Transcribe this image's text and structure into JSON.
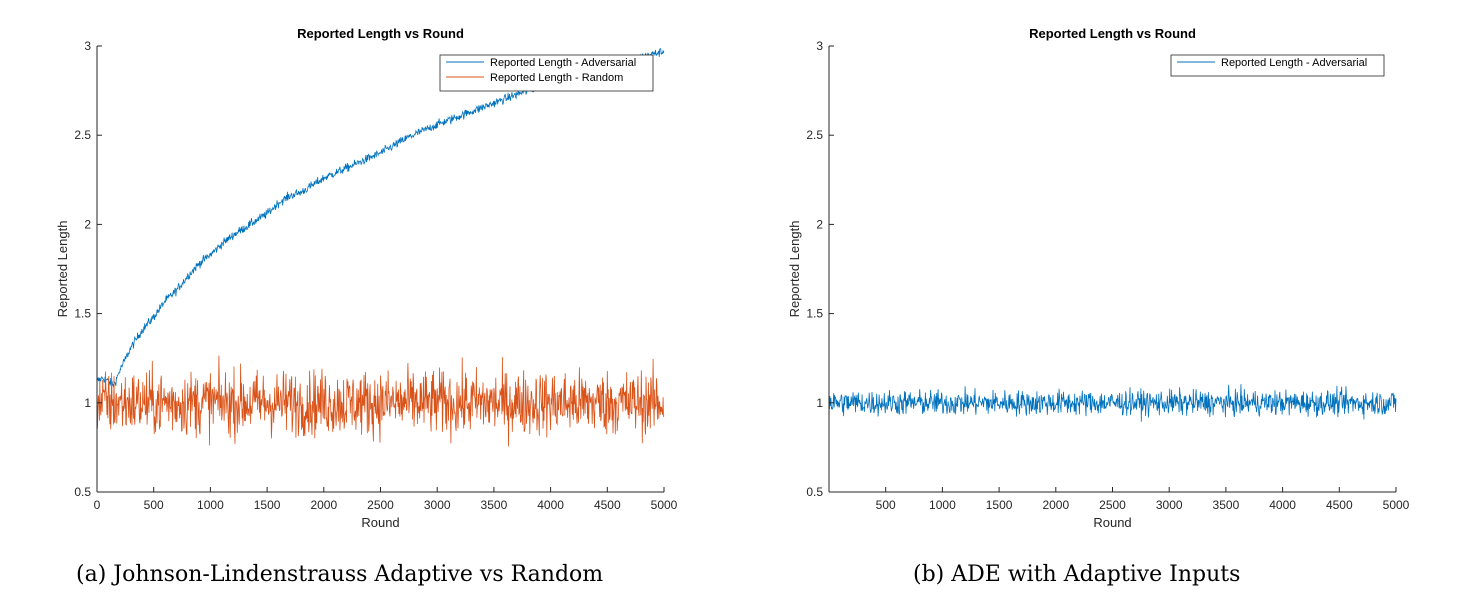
{
  "chart_data": [
    {
      "type": "line",
      "title": "Reported Length vs Round",
      "xlabel": "Round",
      "ylabel": "Reported Length",
      "xlim": [
        0,
        5000
      ],
      "ylim": [
        0.5,
        3
      ],
      "xticks": [
        "0",
        "500",
        "1000",
        "1500",
        "2000",
        "2500",
        "3000",
        "3500",
        "4000",
        "4500",
        "5000"
      ],
      "yticks": [
        "0.5",
        "1",
        "1.5",
        "2",
        "2.5",
        "3"
      ],
      "legend_position": "top-right",
      "series": [
        {
          "name": "Reported Length - Adversarial",
          "color": "#0072BD",
          "x": [
            0,
            50,
            100,
            150,
            200,
            300,
            400,
            500,
            600,
            700,
            800,
            900,
            1000,
            1100,
            1200,
            1300,
            1400,
            1500,
            1600,
            1700,
            1800,
            1900,
            2000,
            2250,
            2500,
            2750,
            3000,
            3250,
            3500,
            3750,
            4000,
            4250,
            4500,
            4750,
            5000
          ],
          "values": [
            1.12,
            1.14,
            1.12,
            1.1,
            1.18,
            1.31,
            1.41,
            1.48,
            1.57,
            1.63,
            1.71,
            1.78,
            1.83,
            1.89,
            1.94,
            1.98,
            2.02,
            2.06,
            2.12,
            2.16,
            2.18,
            2.22,
            2.26,
            2.33,
            2.4,
            2.49,
            2.56,
            2.62,
            2.68,
            2.74,
            2.79,
            2.83,
            2.88,
            2.93,
            2.97
          ],
          "noise": 0.012
        },
        {
          "name": "Reported Length - Random",
          "color": "#D95319",
          "x": [
            0,
            5000
          ],
          "values": [
            1.0,
            1.0
          ],
          "noise": 0.09
        }
      ]
    },
    {
      "type": "line",
      "title": "Reported Length vs Round",
      "xlabel": "Round",
      "ylabel": "Reported Length",
      "xlim": [
        0,
        5000
      ],
      "ylim": [
        0.5,
        3
      ],
      "xticks": [
        "500",
        "1000",
        "1500",
        "2000",
        "2500",
        "3000",
        "3500",
        "4000",
        "4500",
        "5000"
      ],
      "yticks": [
        "0.5",
        "1",
        "1.5",
        "2",
        "2.5",
        "3"
      ],
      "legend_position": "top-right",
      "series": [
        {
          "name": "Reported Length - Adversarial",
          "color": "#0072BD",
          "x": [
            0,
            5000
          ],
          "values": [
            1.0,
            1.0
          ],
          "noise": 0.035
        }
      ]
    }
  ],
  "captions": {
    "a": "(a) Johnson-Lindenstrauss Adaptive vs Random",
    "b": "(b) ADE with Adaptive Inputs"
  }
}
